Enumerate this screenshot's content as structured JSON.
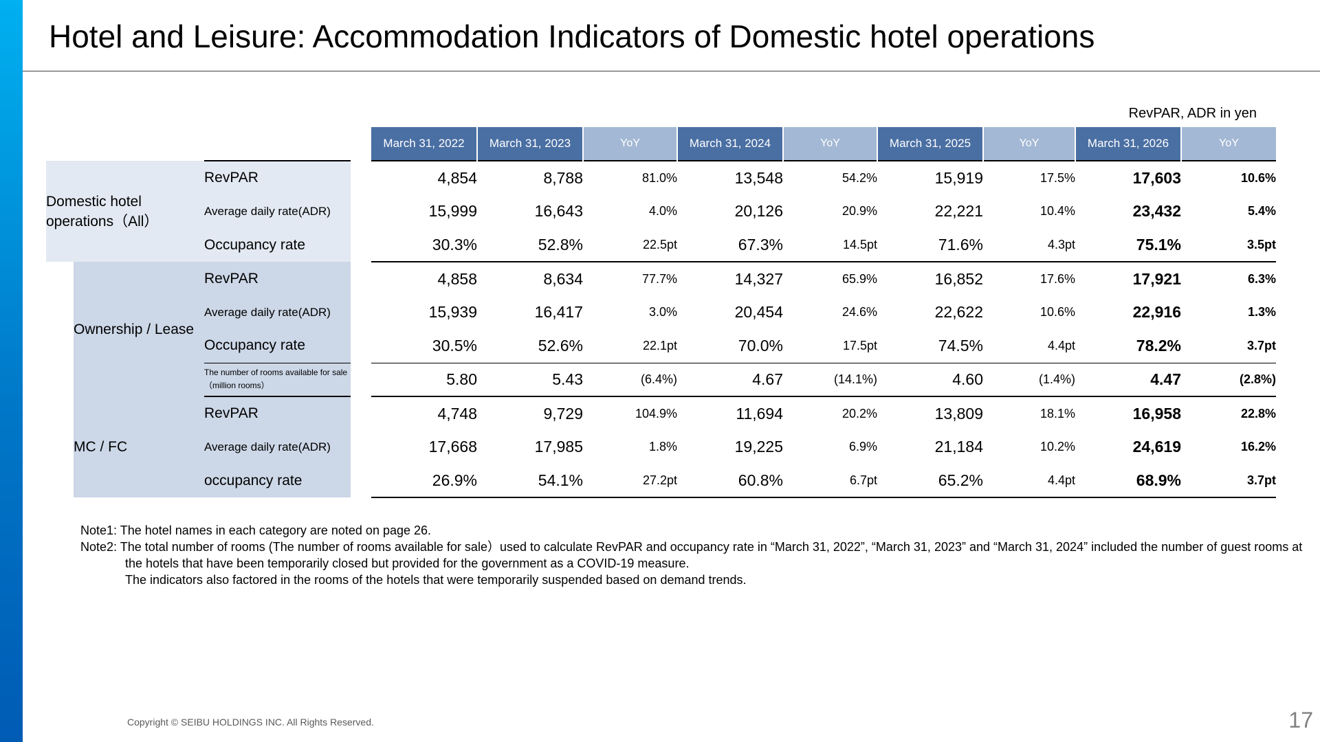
{
  "title": "Hotel and Leisure: Accommodation Indicators of Domestic hotel operations",
  "unit_note": "RevPAR, ADR in yen",
  "columns": [
    "March 31, 2022",
    "March 31, 2023",
    "YoY",
    "March 31, 2024",
    "YoY",
    "March 31, 2025",
    "YoY",
    "March 31, 2026",
    "YoY"
  ],
  "groups": {
    "all": {
      "label": "Domestic hotel operations（All）",
      "rows": [
        {
          "label": "RevPAR",
          "v": [
            "4,854",
            "8,788",
            "81.0%",
            "13,548",
            "54.2%",
            "15,919",
            "17.5%",
            "17,603",
            "10.6%"
          ]
        },
        {
          "label": "Average daily rate(ADR)",
          "v": [
            "15,999",
            "16,643",
            "4.0%",
            "20,126",
            "20.9%",
            "22,221",
            "10.4%",
            "23,432",
            "5.4%"
          ]
        },
        {
          "label": "Occupancy rate",
          "v": [
            "30.3%",
            "52.8%",
            "22.5pt",
            "67.3%",
            "14.5pt",
            "71.6%",
            "4.3pt",
            "75.1%",
            "3.5pt"
          ]
        }
      ]
    },
    "own": {
      "label": "Ownership / Lease",
      "rows": [
        {
          "label": "RevPAR",
          "v": [
            "4,858",
            "8,634",
            "77.7%",
            "14,327",
            "65.9%",
            "16,852",
            "17.6%",
            "17,921",
            "6.3%"
          ]
        },
        {
          "label": "Average daily rate(ADR)",
          "v": [
            "15,939",
            "16,417",
            "3.0%",
            "20,454",
            "24.6%",
            "22,622",
            "10.6%",
            "22,916",
            "1.3%"
          ]
        },
        {
          "label": "Occupancy rate",
          "v": [
            "30.5%",
            "52.6%",
            "22.1pt",
            "70.0%",
            "17.5pt",
            "74.5%",
            "4.4pt",
            "78.2%",
            "3.7pt"
          ]
        },
        {
          "label": "The number of rooms available for sale（million rooms）",
          "v": [
            "5.80",
            "5.43",
            "(6.4%)",
            "4.67",
            "(14.1%)",
            "4.60",
            "(1.4%)",
            "4.47",
            "(2.8%)"
          ]
        }
      ]
    },
    "mcfc": {
      "label": "MC / FC",
      "rows": [
        {
          "label": "RevPAR",
          "v": [
            "4,748",
            "9,729",
            "104.9%",
            "11,694",
            "20.2%",
            "13,809",
            "18.1%",
            "16,958",
            "22.8%"
          ]
        },
        {
          "label": "Average daily rate(ADR)",
          "v": [
            "17,668",
            "17,985",
            "1.8%",
            "19,225",
            "6.9%",
            "21,184",
            "10.2%",
            "24,619",
            "16.2%"
          ]
        },
        {
          "label": "occupancy rate",
          "v": [
            "26.9%",
            "54.1%",
            "27.2pt",
            "60.8%",
            "6.7pt",
            "65.2%",
            "4.4pt",
            "68.9%",
            "3.7pt"
          ]
        }
      ]
    }
  },
  "notes": {
    "note1": "Note1: The hotel names in each category are noted on page 26.",
    "note2": "Note2: The total number of rooms (The number of rooms available for sale）used to calculate RevPAR and occupancy rate in “March 31, 2022”, “March 31, 2023” and “March 31, 2024” included the number of guest rooms at the hotels that have been temporarily closed but provided for the government as a COVID-19 measure.",
    "note3": "The indicators also factored in the rooms of the hotels that were temporarily suspended based on demand trends."
  },
  "footer": {
    "copyright": "Copyright © SEIBU HOLDINGS INC. All Rights Reserved.",
    "page_number": "17"
  },
  "colors": {
    "header_date": "#4a6fa3",
    "header_yoy": "#a3b8d4",
    "shade_all": "#e3e9f2",
    "shade_sub": "#ccd7e7",
    "accent_bar": "#0077c8"
  }
}
